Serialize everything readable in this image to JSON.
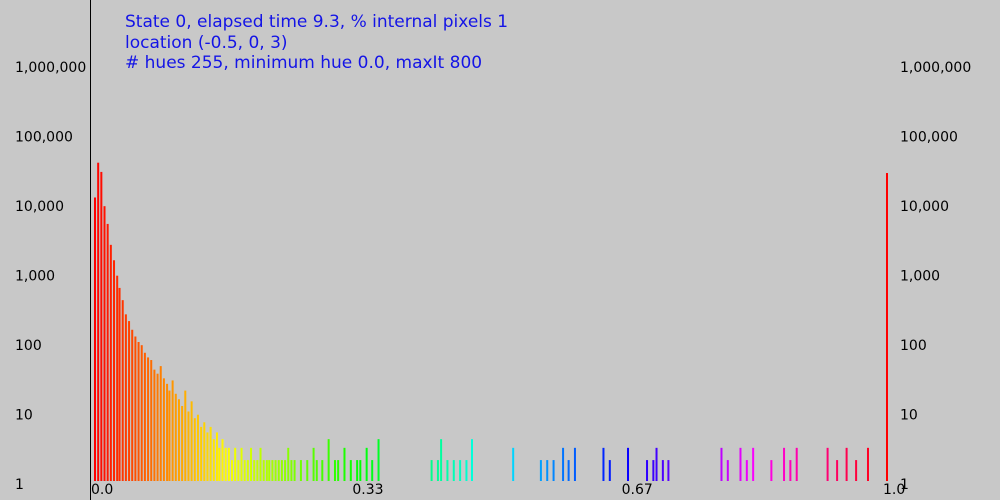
{
  "header": {
    "lines": [
      "State 0, elapsed time 9.3, % internal pixels 1",
      "location (-0.5, 0, 3)",
      "# hues 255, minimum hue 0.0, maxIt 800"
    ]
  },
  "chart_data": {
    "type": "bar",
    "ylog": true,
    "xlim": [
      0,
      1
    ],
    "xticks": [
      {
        "value": 0,
        "label": "0.0"
      },
      0.33,
      0.67,
      {
        "value": 1,
        "label": "1.0"
      }
    ],
    "ylim": [
      1,
      1000000
    ],
    "yticks": [
      1,
      10,
      100,
      {
        "value": 1000,
        "label": "1,000"
      },
      {
        "value": 10000,
        "label": "10,000"
      },
      {
        "value": 100000,
        "label": "100,000"
      },
      {
        "value": 1000000,
        "label": "1,000,000"
      }
    ],
    "x": [
      0,
      0.004,
      0.008,
      0.012,
      0.016,
      0.02,
      0.024,
      0.028,
      0.031,
      0.035,
      0.039,
      0.043,
      0.047,
      0.051,
      0.055,
      0.059,
      0.063,
      0.067,
      0.071,
      0.075,
      0.079,
      0.083,
      0.087,
      0.091,
      0.094,
      0.098,
      0.102,
      0.106,
      0.11,
      0.114,
      0.118,
      0.122,
      0.126,
      0.13,
      0.134,
      0.138,
      0.142,
      0.146,
      0.15,
      0.154,
      0.157,
      0.161,
      0.165,
      0.169,
      0.173,
      0.177,
      0.181,
      0.185,
      0.189,
      0.193,
      0.197,
      0.201,
      0.205,
      0.209,
      0.213,
      0.217,
      0.22,
      0.224,
      0.228,
      0.232,
      0.236,
      0.24,
      0.244,
      0.248,
      0.252,
      0.26,
      0.268,
      0.276,
      0.28,
      0.287,
      0.295,
      0.303,
      0.307,
      0.315,
      0.323,
      0.331,
      0.335,
      0.343,
      0.35,
      0.358,
      0.425,
      0.433,
      0.437,
      0.445,
      0.453,
      0.461,
      0.469,
      0.476,
      0.528,
      0.563,
      0.571,
      0.579,
      0.591,
      0.598,
      0.606,
      0.642,
      0.65,
      0.673,
      0.697,
      0.705,
      0.709,
      0.717,
      0.724,
      0.791,
      0.799,
      0.815,
      0.823,
      0.831,
      0.854,
      0.87,
      0.878,
      0.886,
      0.925,
      0.937,
      0.949,
      0.961,
      0.976,
      1
    ],
    "values": [
      12000,
      38000,
      28000,
      9000,
      5000,
      2500,
      1500,
      900,
      600,
      400,
      250,
      200,
      150,
      120,
      100,
      90,
      70,
      60,
      55,
      40,
      35,
      45,
      30,
      25,
      20,
      28,
      18,
      15,
      12,
      20,
      10,
      14,
      8,
      9,
      6,
      7,
      5,
      6,
      4,
      5,
      3,
      4,
      3,
      3,
      2,
      3,
      2,
      3,
      2,
      2,
      3,
      2,
      2,
      3,
      2,
      2,
      2,
      2,
      2,
      2,
      2,
      2,
      3,
      2,
      2,
      2,
      2,
      3,
      2,
      2,
      4,
      2,
      2,
      3,
      2,
      2,
      2,
      3,
      2,
      4,
      2,
      2,
      4,
      2,
      2,
      2,
      2,
      4,
      3,
      2,
      2,
      2,
      3,
      2,
      3,
      3,
      2,
      3,
      2,
      2,
      3,
      2,
      2,
      3,
      2,
      3,
      2,
      3,
      2,
      3,
      2,
      3,
      3,
      2,
      3,
      2,
      3,
      27000
    ]
  }
}
